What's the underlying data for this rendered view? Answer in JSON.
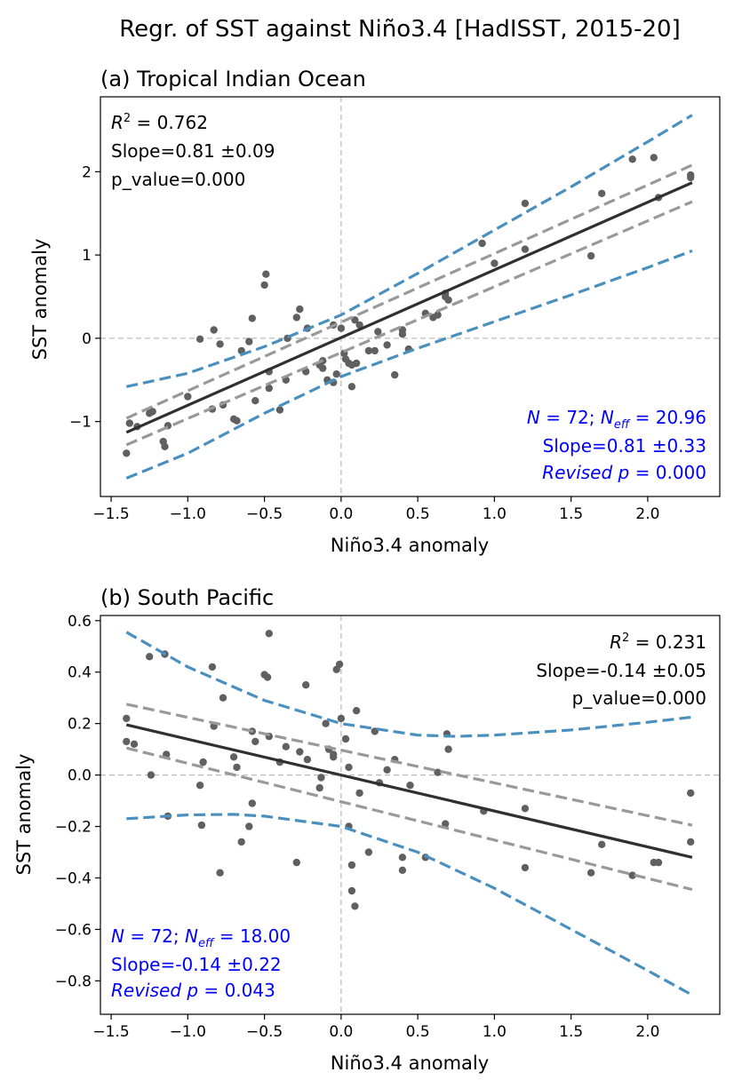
{
  "figure": {
    "title": "Regr. of SST against Niño3.4 [HadISST, 2015-20]"
  },
  "colors": {
    "points": "#606060",
    "fit_line": "#303030",
    "slope_ci": "#999999",
    "pred_band": "#4a90bf",
    "zero_lines": "#bbbbbb",
    "revised_text": "#0000ff"
  },
  "chart_data": [
    {
      "type": "scatter",
      "title": "(a) Tropical Indian Ocean",
      "xlabel": "Niño3.4 anomaly",
      "ylabel": "SST anomaly",
      "xlim": [
        -1.57,
        2.47
      ],
      "ylim": [
        -1.9,
        2.9
      ],
      "xticks": [
        -1.5,
        -1.0,
        -0.5,
        0.0,
        0.5,
        1.0,
        1.5,
        2.0
      ],
      "xtick_labels": [
        "−1.5",
        "−1.0",
        "−0.5",
        "0.0",
        "0.5",
        "1.0",
        "1.5",
        "2.0"
      ],
      "yticks": [
        -1,
        0,
        1,
        2
      ],
      "ytick_labels": [
        "−1",
        "0",
        "1",
        "2"
      ],
      "stats": {
        "r2_value": "0.762",
        "slope_line": "Slope=0.81 ±0.09",
        "p_line": "p_value=0.000",
        "n_value": "72",
        "neff_value": "20.96",
        "revised_slope_line": "Slope=0.81 ±0.33",
        "revised_p_value": "0.000",
        "stats_position": "top-left",
        "revised_position": "bottom-right"
      },
      "fit": {
        "x": [
          -1.4,
          2.29
        ],
        "y": [
          -1.13,
          1.87
        ]
      },
      "slope_ci_upper": {
        "x": [
          -1.4,
          2.29
        ],
        "y": [
          -0.96,
          2.08
        ]
      },
      "slope_ci_lower": {
        "x": [
          -1.4,
          2.29
        ],
        "y": [
          -1.28,
          1.64
        ]
      },
      "prediction_upper": {
        "x": [
          -1.4,
          -1.0,
          -0.5,
          0.0,
          0.5,
          1.0,
          1.5,
          2.0,
          2.29
        ],
        "y": [
          -0.58,
          -0.42,
          -0.1,
          0.28,
          0.78,
          1.3,
          1.82,
          2.36,
          2.68
        ]
      },
      "prediction_lower": {
        "x": [
          -1.4,
          -1.0,
          -0.5,
          0.0,
          0.5,
          1.0,
          1.5,
          2.0,
          2.29
        ],
        "y": [
          -1.68,
          -1.38,
          -0.9,
          -0.46,
          -0.12,
          0.2,
          0.52,
          0.85,
          1.05
        ]
      },
      "points": [
        [
          -1.4,
          -1.38
        ],
        [
          -1.38,
          -1.02
        ],
        [
          -1.33,
          -1.06
        ],
        [
          -1.25,
          -0.9
        ],
        [
          -1.23,
          -0.88
        ],
        [
          -1.16,
          -1.24
        ],
        [
          -1.15,
          -1.3
        ],
        [
          -1.13,
          -1.05
        ],
        [
          -0.92,
          -0.01
        ],
        [
          -0.84,
          -0.85
        ],
        [
          -0.83,
          0.1
        ],
        [
          -0.79,
          -0.07
        ],
        [
          -0.77,
          -0.8
        ],
        [
          -0.7,
          -0.97
        ],
        [
          -0.68,
          -0.99
        ],
        [
          -0.65,
          -0.15
        ],
        [
          -0.6,
          -0.04
        ],
        [
          -0.58,
          0.24
        ],
        [
          -0.56,
          -0.75
        ],
        [
          -0.5,
          0.64
        ],
        [
          -0.49,
          0.77
        ],
        [
          -0.47,
          -0.6
        ],
        [
          -0.47,
          -0.4
        ],
        [
          -0.4,
          -0.86
        ],
        [
          -0.36,
          -0.5
        ],
        [
          -0.29,
          0.25
        ],
        [
          -0.27,
          0.35
        ],
        [
          -0.23,
          -0.4
        ],
        [
          -0.14,
          -0.32
        ],
        [
          -0.12,
          -0.27
        ],
        [
          -0.12,
          -0.36
        ],
        [
          -0.09,
          -0.5
        ],
        [
          -0.05,
          0.16
        ],
        [
          -0.05,
          -0.53
        ],
        [
          -0.03,
          -0.43
        ],
        [
          0.0,
          0.12
        ],
        [
          0.02,
          -0.18
        ],
        [
          0.03,
          -0.25
        ],
        [
          0.05,
          -0.3
        ],
        [
          0.07,
          -0.32
        ],
        [
          0.07,
          -0.58
        ],
        [
          0.09,
          0.22
        ],
        [
          0.1,
          -0.3
        ],
        [
          0.12,
          0.16
        ],
        [
          0.18,
          -0.15
        ],
        [
          0.22,
          -0.15
        ],
        [
          0.24,
          0.08
        ],
        [
          0.3,
          -0.08
        ],
        [
          0.35,
          -0.44
        ],
        [
          0.4,
          0.1
        ],
        [
          0.44,
          -0.13
        ],
        [
          0.55,
          0.3
        ],
        [
          0.63,
          0.28
        ],
        [
          0.68,
          0.5
        ],
        [
          0.68,
          0.54
        ],
        [
          0.7,
          0.46
        ],
        [
          0.92,
          1.14
        ],
        [
          1.2,
          1.62
        ],
        [
          1.2,
          1.07
        ],
        [
          1.63,
          0.99
        ],
        [
          1.7,
          1.74
        ],
        [
          1.9,
          2.15
        ],
        [
          2.04,
          2.17
        ],
        [
          2.07,
          1.69
        ],
        [
          2.28,
          1.93
        ],
        [
          2.28,
          1.96
        ],
        [
          -0.22,
          0.12
        ],
        [
          0.4,
          0.05
        ],
        [
          -1.0,
          -0.7
        ],
        [
          0.6,
          0.25
        ],
        [
          -0.35,
          0.0
        ],
        [
          1.0,
          0.9
        ]
      ]
    },
    {
      "type": "scatter",
      "title": "(b) South Pacific",
      "xlabel": "Niño3.4 anomaly",
      "ylabel": "SST anomaly",
      "xlim": [
        -1.57,
        2.47
      ],
      "ylim": [
        -0.93,
        0.62
      ],
      "xticks": [
        -1.5,
        -1.0,
        -0.5,
        0.0,
        0.5,
        1.0,
        1.5,
        2.0
      ],
      "xtick_labels": [
        "−1.5",
        "−1.0",
        "−0.5",
        "0.0",
        "0.5",
        "1.0",
        "1.5",
        "2.0"
      ],
      "yticks": [
        0.6,
        0.4,
        0.2,
        0.0,
        -0.2,
        -0.4,
        -0.6,
        -0.8
      ],
      "ytick_labels": [
        "0.6",
        "0.4",
        "0.2",
        "0.0",
        "−0.2",
        "−0.4",
        "−0.6",
        "−0.8"
      ],
      "stats": {
        "r2_value": "0.231",
        "slope_line": "Slope=-0.14 ±0.05",
        "p_line": "p_value=0.000",
        "n_value": "72",
        "neff_value": "18.00",
        "revised_slope_line": "Slope=-0.14 ±0.22",
        "revised_p_value": "0.043",
        "stats_position": "top-right",
        "revised_position": "bottom-left"
      },
      "fit": {
        "x": [
          -1.4,
          2.29
        ],
        "y": [
          0.195,
          -0.32
        ]
      },
      "slope_ci_upper": {
        "x": [
          -1.4,
          2.29
        ],
        "y": [
          0.275,
          -0.195
        ]
      },
      "slope_ci_lower": {
        "x": [
          -1.4,
          2.29
        ],
        "y": [
          0.105,
          -0.445
        ]
      },
      "prediction_upper": {
        "x": [
          -1.4,
          -1.0,
          -0.5,
          0.0,
          0.5,
          0.75,
          1.0,
          1.5,
          2.0,
          2.29
        ],
        "y": [
          0.555,
          0.42,
          0.29,
          0.2,
          0.155,
          0.15,
          0.155,
          0.175,
          0.205,
          0.225
        ]
      },
      "prediction_lower": {
        "x": [
          -1.4,
          -1.0,
          -0.7,
          -0.5,
          0.0,
          0.5,
          1.0,
          1.5,
          2.0,
          2.29
        ],
        "y": [
          -0.17,
          -0.155,
          -0.153,
          -0.16,
          -0.2,
          -0.3,
          -0.44,
          -0.6,
          -0.76,
          -0.855
        ]
      },
      "points": [
        [
          -1.4,
          0.22
        ],
        [
          -1.4,
          0.13
        ],
        [
          -1.35,
          0.12
        ],
        [
          -1.25,
          0.46
        ],
        [
          -1.24,
          0.0
        ],
        [
          -1.15,
          0.47
        ],
        [
          -1.14,
          0.08
        ],
        [
          -1.13,
          -0.16
        ],
        [
          -0.92,
          -0.04
        ],
        [
          -0.91,
          -0.195
        ],
        [
          -0.84,
          0.42
        ],
        [
          -0.83,
          0.19
        ],
        [
          -0.79,
          -0.38
        ],
        [
          -0.77,
          0.3
        ],
        [
          -0.7,
          0.07
        ],
        [
          -0.68,
          0.03
        ],
        [
          -0.65,
          -0.26
        ],
        [
          -0.6,
          -0.2
        ],
        [
          -0.58,
          0.17
        ],
        [
          -0.58,
          -0.11
        ],
        [
          -0.56,
          0.13
        ],
        [
          -0.5,
          0.39
        ],
        [
          -0.48,
          0.38
        ],
        [
          -0.47,
          0.15
        ],
        [
          -0.47,
          0.55
        ],
        [
          -0.4,
          0.05
        ],
        [
          -0.36,
          0.11
        ],
        [
          -0.29,
          -0.34
        ],
        [
          -0.27,
          0.09
        ],
        [
          -0.23,
          0.35
        ],
        [
          -0.14,
          -0.05
        ],
        [
          -0.13,
          -0.01
        ],
        [
          -0.1,
          0.2
        ],
        [
          -0.08,
          0.1
        ],
        [
          -0.05,
          0.08
        ],
        [
          -0.05,
          0.07
        ],
        [
          -0.03,
          0.41
        ],
        [
          -0.01,
          0.43
        ],
        [
          0.0,
          0.22
        ],
        [
          0.03,
          0.14
        ],
        [
          0.05,
          -0.2
        ],
        [
          0.07,
          -0.35
        ],
        [
          0.07,
          -0.45
        ],
        [
          0.09,
          -0.51
        ],
        [
          0.1,
          0.25
        ],
        [
          0.12,
          -0.07
        ],
        [
          0.18,
          -0.3
        ],
        [
          0.22,
          0.17
        ],
        [
          0.25,
          -0.03
        ],
        [
          0.3,
          0.02
        ],
        [
          0.35,
          0.06
        ],
        [
          0.4,
          -0.32
        ],
        [
          0.4,
          -0.37
        ],
        [
          0.45,
          -0.04
        ],
        [
          0.55,
          -0.32
        ],
        [
          0.63,
          0.01
        ],
        [
          0.68,
          -0.19
        ],
        [
          0.69,
          0.16
        ],
        [
          0.7,
          0.1
        ],
        [
          0.93,
          -0.14
        ],
        [
          1.2,
          -0.13
        ],
        [
          1.2,
          -0.36
        ],
        [
          1.63,
          -0.38
        ],
        [
          1.7,
          -0.27
        ],
        [
          1.9,
          -0.39
        ],
        [
          2.04,
          -0.34
        ],
        [
          2.07,
          -0.34
        ],
        [
          2.28,
          -0.07
        ],
        [
          2.28,
          -0.26
        ],
        [
          -0.22,
          0.06
        ],
        [
          0.05,
          0.03
        ],
        [
          -0.9,
          0.05
        ]
      ]
    }
  ]
}
